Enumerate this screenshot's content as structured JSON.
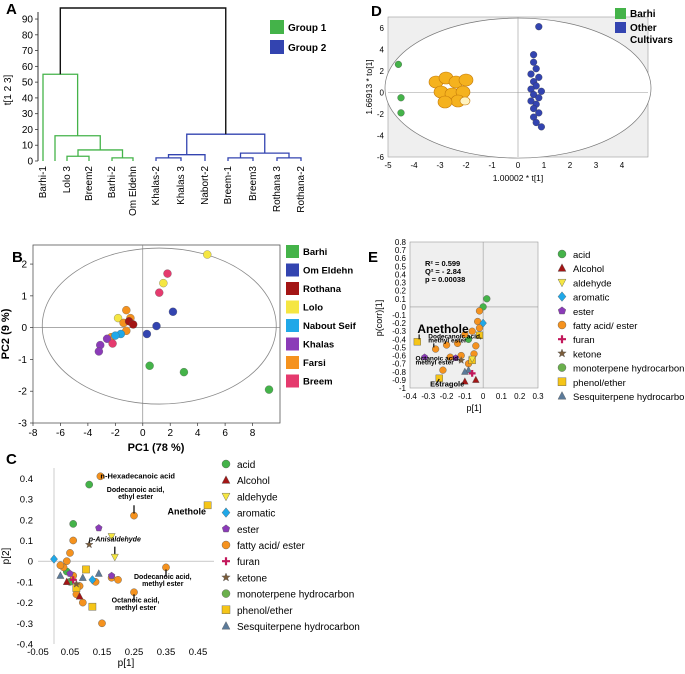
{
  "chart_data": [
    {
      "panel": "A",
      "type": "dendrogram",
      "ylabel": "t[1 2 3]",
      "yticks": [
        0,
        10,
        20,
        30,
        40,
        50,
        60,
        70,
        80,
        90
      ],
      "ylim": [
        0,
        97
      ],
      "leaves": [
        "Barhi-1",
        "Lolo 3",
        "Breem2",
        "Barhi-2",
        "Om Eldehn",
        "Khalas-2",
        "Khalas 3",
        "Nabort-2",
        "Breem-1",
        "Breem3",
        "Rothana 3",
        "Rothana-2"
      ],
      "legend": [
        {
          "label": "Group 1",
          "color": "#44b349"
        },
        {
          "label": "Group 2",
          "color": "#3344b0"
        }
      ],
      "root_height": 97,
      "group1_height": 55,
      "group2_height": 17
    },
    {
      "panel": "B",
      "type": "scatter",
      "xlabel": "PC1 (78 %)",
      "ylabel": "PC2 (9 %)",
      "xlim": [
        -8,
        10
      ],
      "ylim": [
        -3,
        2.6
      ],
      "xticks": [
        -8,
        -6,
        -4,
        -2,
        0,
        2,
        4,
        6,
        8
      ],
      "yticks": [
        -3,
        -2,
        -1,
        0,
        1,
        2
      ],
      "legend": [
        {
          "label": "Barhi",
          "color": "#44b349"
        },
        {
          "label": "Om Eldehn",
          "color": "#3344b0"
        },
        {
          "label": "Rothana",
          "color": "#a31515"
        },
        {
          "label": "Lolo",
          "color": "#f5e642"
        },
        {
          "label": "Nabout Seif",
          "color": "#20a8e8"
        },
        {
          "label": "Khalas",
          "color": "#8b3bb8"
        },
        {
          "label": "Farsi",
          "color": "#f5921e"
        },
        {
          "label": "Breem",
          "color": "#e53a6e"
        }
      ],
      "points": [
        {
          "x": 9.2,
          "y": -1.95,
          "color": "#44b349"
        },
        {
          "x": 3.0,
          "y": -1.4,
          "color": "#44b349"
        },
        {
          "x": 0.5,
          "y": -1.2,
          "color": "#44b349"
        },
        {
          "x": 4.7,
          "y": 2.3,
          "color": "#f5e642"
        },
        {
          "x": 1.5,
          "y": 1.4,
          "color": "#f5e642"
        },
        {
          "x": -1.8,
          "y": 0.3,
          "color": "#f5e642"
        },
        {
          "x": 1.8,
          "y": 1.7,
          "color": "#e53a6e"
        },
        {
          "x": 1.2,
          "y": 1.1,
          "color": "#e53a6e"
        },
        {
          "x": 2.2,
          "y": 0.5,
          "color": "#3344b0"
        },
        {
          "x": 1.0,
          "y": 0.05,
          "color": "#3344b0"
        },
        {
          "x": 0.3,
          "y": -0.2,
          "color": "#3344b0"
        },
        {
          "x": -1.2,
          "y": 0.55,
          "color": "#f5921e"
        },
        {
          "x": -0.9,
          "y": 0.3,
          "color": "#f5921e"
        },
        {
          "x": -1.2,
          "y": -0.1,
          "color": "#f5921e"
        },
        {
          "x": -1.4,
          "y": 0.15,
          "color": "#f5921e"
        },
        {
          "x": -2.3,
          "y": -0.3,
          "color": "#f5921e"
        },
        {
          "x": -1.0,
          "y": 0.2,
          "color": "#a31515"
        },
        {
          "x": -0.7,
          "y": 0.1,
          "color": "#a31515"
        },
        {
          "x": -1.6,
          "y": -0.2,
          "color": "#20a8e8"
        },
        {
          "x": -2.0,
          "y": -0.25,
          "color": "#20a8e8"
        },
        {
          "x": -3.1,
          "y": -0.55,
          "color": "#8b3bb8"
        },
        {
          "x": -3.2,
          "y": -0.75,
          "color": "#8b3bb8"
        },
        {
          "x": -2.6,
          "y": -0.35,
          "color": "#8b3bb8"
        },
        {
          "x": -2.2,
          "y": -0.5,
          "color": "#e53a6e"
        }
      ]
    },
    {
      "panel": "C",
      "type": "loadings-scatter",
      "xlabel": "p[1]",
      "ylabel": "p[2]",
      "xlim": [
        -0.05,
        0.5
      ],
      "ylim": [
        -0.4,
        0.45
      ],
      "xticks": [
        -0.05,
        0.05,
        0.15,
        0.25,
        0.35,
        0.45
      ],
      "yticks": [
        -0.4,
        -0.3,
        -0.2,
        -0.1,
        0,
        0.1,
        0.2,
        0.3,
        0.4
      ],
      "annotations": [
        {
          "text": "n-Hexadecanoic acid",
          "x": 0.145,
          "y": 0.4
        },
        {
          "text": "Dodecanoic acid,",
          "x": 0.255,
          "y": 0.335
        },
        {
          "text": "ethyl ester",
          "x": 0.255,
          "y": 0.3
        },
        {
          "text": "Anethole",
          "x": 0.415,
          "y": 0.225
        },
        {
          "text": "p-Anisaldehyde",
          "x": 0.19,
          "y": 0.095
        },
        {
          "text": "Dodecanoic acid,",
          "x": 0.34,
          "y": -0.085
        },
        {
          "text": "methyl ester",
          "x": 0.34,
          "y": -0.12
        },
        {
          "text": "Octanoic acid,",
          "x": 0.255,
          "y": -0.2
        },
        {
          "text": "methyl ester",
          "x": 0.255,
          "y": -0.235
        }
      ],
      "points": [
        {
          "x": 0.11,
          "y": 0.37,
          "shape": "circle",
          "color": "#44b349"
        },
        {
          "x": 0.06,
          "y": 0.18,
          "shape": "circle",
          "color": "#44b349"
        },
        {
          "x": 0.04,
          "y": -0.05,
          "shape": "circle",
          "color": "#44b349"
        },
        {
          "x": 0.05,
          "y": -0.1,
          "shape": "circle",
          "color": "#44b349"
        },
        {
          "x": 0.145,
          "y": 0.41,
          "shape": "circle",
          "color": "#f5921e"
        },
        {
          "x": 0.25,
          "y": 0.22,
          "shape": "circle",
          "color": "#f5921e"
        },
        {
          "x": 0.35,
          "y": -0.03,
          "shape": "circle",
          "color": "#f5921e"
        },
        {
          "x": 0.25,
          "y": -0.15,
          "shape": "circle",
          "color": "#f5921e"
        },
        {
          "x": 0.15,
          "y": -0.3,
          "shape": "circle",
          "color": "#f5921e"
        },
        {
          "x": 0.06,
          "y": 0.1,
          "shape": "circle",
          "color": "#f5921e"
        },
        {
          "x": 0.05,
          "y": 0.04,
          "shape": "circle",
          "color": "#f5921e"
        },
        {
          "x": 0.04,
          "y": 0.0,
          "shape": "circle",
          "color": "#f5921e"
        },
        {
          "x": 0.03,
          "y": -0.03,
          "shape": "circle",
          "color": "#f5921e"
        },
        {
          "x": 0.06,
          "y": -0.07,
          "shape": "circle",
          "color": "#f5921e"
        },
        {
          "x": 0.08,
          "y": -0.12,
          "shape": "circle",
          "color": "#f5921e"
        },
        {
          "x": 0.09,
          "y": -0.2,
          "shape": "circle",
          "color": "#f5921e"
        },
        {
          "x": 0.13,
          "y": -0.1,
          "shape": "circle",
          "color": "#f5921e"
        },
        {
          "x": 0.18,
          "y": -0.08,
          "shape": "circle",
          "color": "#f5921e"
        },
        {
          "x": 0.2,
          "y": -0.09,
          "shape": "circle",
          "color": "#f5921e"
        },
        {
          "x": 0.07,
          "y": -0.16,
          "shape": "circle",
          "color": "#f5921e"
        },
        {
          "x": 0.02,
          "y": -0.02,
          "shape": "circle",
          "color": "#f5921e"
        },
        {
          "x": 0.48,
          "y": 0.27,
          "shape": "square",
          "color": "#f5c518"
        },
        {
          "x": 0.12,
          "y": -0.22,
          "shape": "square",
          "color": "#f5c518"
        },
        {
          "x": 0.1,
          "y": -0.04,
          "shape": "square",
          "color": "#f5c518"
        },
        {
          "x": 0.07,
          "y": -0.13,
          "shape": "square",
          "color": "#f5c518"
        },
        {
          "x": 0.18,
          "y": 0.12,
          "shape": "triangle-down",
          "color": "#f5e642"
        },
        {
          "x": 0.19,
          "y": 0.02,
          "shape": "triangle-down",
          "color": "#f5e642"
        },
        {
          "x": 0.12,
          "y": -0.09,
          "shape": "diamond",
          "color": "#20a8e8"
        },
        {
          "x": 0.0,
          "y": 0.01,
          "shape": "diamond",
          "color": "#20a8e8"
        },
        {
          "x": 0.14,
          "y": 0.16,
          "shape": "pentagon",
          "color": "#8b3bb8"
        },
        {
          "x": 0.18,
          "y": -0.07,
          "shape": "pentagon",
          "color": "#8b3bb8"
        },
        {
          "x": 0.05,
          "y": -0.06,
          "shape": "pentagon",
          "color": "#8b3bb8"
        },
        {
          "x": 0.08,
          "y": -0.17,
          "shape": "triangle",
          "color": "#a31515"
        },
        {
          "x": 0.04,
          "y": -0.1,
          "shape": "triangle",
          "color": "#a31515"
        },
        {
          "x": 0.07,
          "y": -0.11,
          "shape": "star",
          "color": "#7a5c3a"
        },
        {
          "x": 0.11,
          "y": 0.08,
          "shape": "star",
          "color": "#7a5c3a"
        },
        {
          "x": 0.09,
          "y": -0.08,
          "shape": "triangle",
          "color": "#5b7a99"
        },
        {
          "x": 0.02,
          "y": -0.07,
          "shape": "triangle",
          "color": "#5b7a99"
        },
        {
          "x": 0.14,
          "y": -0.06,
          "shape": "triangle",
          "color": "#5b7a99"
        },
        {
          "x": 0.06,
          "y": -0.09,
          "shape": "plus",
          "color": "#c2185b"
        }
      ]
    },
    {
      "panel": "D",
      "type": "scatter",
      "xlabel": "1.00002 * t[1]",
      "ylabel": "1.66913 * to[1]",
      "xlim": [
        -5,
        5
      ],
      "ylim": [
        -6,
        7
      ],
      "xticks": [
        -5,
        -4,
        -3,
        -2,
        -1,
        0,
        1,
        2,
        3,
        4
      ],
      "yticks": [
        -6,
        -4,
        -2,
        0,
        2,
        4,
        6
      ],
      "legend": [
        {
          "label": "Barhi",
          "color": "#44b349"
        },
        {
          "label": "Other",
          "color": "#3344b0"
        },
        {
          "label": "Cultivars",
          "color": "#3344b0"
        }
      ],
      "points": [
        {
          "x": -4.6,
          "y": 2.6,
          "color": "#44b349"
        },
        {
          "x": -4.5,
          "y": -0.5,
          "color": "#44b349"
        },
        {
          "x": -4.5,
          "y": -1.9,
          "color": "#44b349"
        },
        {
          "x": 0.8,
          "y": 6.1,
          "color": "#3344b0"
        },
        {
          "x": 0.6,
          "y": 3.5,
          "color": "#3344b0"
        },
        {
          "x": 0.6,
          "y": 2.8,
          "color": "#3344b0"
        },
        {
          "x": 0.7,
          "y": 2.2,
          "color": "#3344b0"
        },
        {
          "x": 0.5,
          "y": 1.7,
          "color": "#3344b0"
        },
        {
          "x": 0.8,
          "y": 1.4,
          "color": "#3344b0"
        },
        {
          "x": 0.6,
          "y": 1.0,
          "color": "#3344b0"
        },
        {
          "x": 0.7,
          "y": 0.6,
          "color": "#3344b0"
        },
        {
          "x": 0.5,
          "y": 0.3,
          "color": "#3344b0"
        },
        {
          "x": 0.9,
          "y": 0.1,
          "color": "#3344b0"
        },
        {
          "x": 0.6,
          "y": -0.2,
          "color": "#3344b0"
        },
        {
          "x": 0.8,
          "y": -0.5,
          "color": "#3344b0"
        },
        {
          "x": 0.5,
          "y": -0.8,
          "color": "#3344b0"
        },
        {
          "x": 0.7,
          "y": -1.1,
          "color": "#3344b0"
        },
        {
          "x": 0.6,
          "y": -1.5,
          "color": "#3344b0"
        },
        {
          "x": 0.8,
          "y": -1.9,
          "color": "#3344b0"
        },
        {
          "x": 0.6,
          "y": -2.3,
          "color": "#3344b0"
        },
        {
          "x": 0.7,
          "y": -2.8,
          "color": "#3344b0"
        },
        {
          "x": 0.9,
          "y": -3.2,
          "color": "#3344b0"
        }
      ]
    },
    {
      "panel": "E",
      "type": "s-plot",
      "xlabel": "p[1]",
      "ylabel": "p(corr)[1]",
      "xlim": [
        -0.4,
        0.3
      ],
      "ylim": [
        -1.0,
        0.8
      ],
      "xticks": [
        -0.4,
        -0.3,
        -0.2,
        -0.1,
        0,
        0.1,
        0.2,
        0.3
      ],
      "yticks": [
        -1,
        -0.9,
        -0.8,
        -0.7,
        -0.6,
        -0.5,
        -0.4,
        -0.3,
        -0.2,
        -0.1,
        0,
        0.1,
        0.2,
        0.3,
        0.4,
        0.5,
        0.6,
        0.7,
        0.8
      ],
      "stats": [
        "R² = 0.599",
        "Q² = - 2.84",
        "p = 0.00038"
      ],
      "annotations": [
        {
          "text": "Anethole",
          "x": -0.36,
          "y": -0.32
        },
        {
          "text": "Dodecanoic acid,",
          "x": -0.3,
          "y": -0.39
        },
        {
          "text": "methyl ester",
          "x": -0.3,
          "y": -0.44
        },
        {
          "text": "Octanoic acid,",
          "x": -0.37,
          "y": -0.66
        },
        {
          "text": "methyl ester",
          "x": -0.37,
          "y": -0.71
        },
        {
          "text": "Estragole",
          "x": -0.29,
          "y": -0.98
        }
      ],
      "points": [
        {
          "x": 0.02,
          "y": 0.1,
          "shape": "circle",
          "color": "#44b349"
        },
        {
          "x": 0.0,
          "y": 0.0,
          "shape": "circle",
          "color": "#44b349"
        },
        {
          "x": -0.08,
          "y": -0.4,
          "shape": "circle",
          "color": "#44b349"
        },
        {
          "x": -0.02,
          "y": -0.05,
          "shape": "circle",
          "color": "#f5921e"
        },
        {
          "x": -0.03,
          "y": -0.18,
          "shape": "circle",
          "color": "#f5921e"
        },
        {
          "x": -0.02,
          "y": -0.26,
          "shape": "circle",
          "color": "#f5921e"
        },
        {
          "x": -0.06,
          "y": -0.3,
          "shape": "circle",
          "color": "#f5921e"
        },
        {
          "x": -0.1,
          "y": -0.34,
          "shape": "circle",
          "color": "#f5921e"
        },
        {
          "x": -0.14,
          "y": -0.45,
          "shape": "circle",
          "color": "#f5921e"
        },
        {
          "x": -0.2,
          "y": -0.47,
          "shape": "circle",
          "color": "#f5921e"
        },
        {
          "x": -0.26,
          "y": -0.52,
          "shape": "circle",
          "color": "#f5921e"
        },
        {
          "x": -0.18,
          "y": -0.62,
          "shape": "circle",
          "color": "#f5921e"
        },
        {
          "x": -0.12,
          "y": -0.6,
          "shape": "circle",
          "color": "#f5921e"
        },
        {
          "x": -0.05,
          "y": -0.58,
          "shape": "circle",
          "color": "#f5921e"
        },
        {
          "x": -0.08,
          "y": -0.7,
          "shape": "circle",
          "color": "#f5921e"
        },
        {
          "x": -0.22,
          "y": -0.78,
          "shape": "circle",
          "color": "#f5921e"
        },
        {
          "x": -0.04,
          "y": -0.48,
          "shape": "circle",
          "color": "#f5921e"
        },
        {
          "x": -0.36,
          "y": -0.43,
          "shape": "square",
          "color": "#f5c518"
        },
        {
          "x": -0.02,
          "y": -0.35,
          "shape": "square",
          "color": "#f5c518"
        },
        {
          "x": -0.24,
          "y": -0.88,
          "shape": "square",
          "color": "#f5c518"
        },
        {
          "x": -0.06,
          "y": -0.66,
          "shape": "square",
          "color": "#f5c518"
        },
        {
          "x": -0.06,
          "y": -0.64,
          "shape": "triangle-down",
          "color": "#f5e642"
        },
        {
          "x": 0.0,
          "y": -0.2,
          "shape": "diamond",
          "color": "#20a8e8"
        },
        {
          "x": -0.15,
          "y": -0.63,
          "shape": "pentagon",
          "color": "#8b3bb8"
        },
        {
          "x": -0.32,
          "y": -0.62,
          "shape": "pentagon",
          "color": "#8b3bb8"
        },
        {
          "x": -0.1,
          "y": -0.92,
          "shape": "triangle",
          "color": "#a31515"
        },
        {
          "x": -0.04,
          "y": -0.9,
          "shape": "triangle",
          "color": "#a31515"
        },
        {
          "x": -0.12,
          "y": -0.66,
          "shape": "star",
          "color": "#7a5c3a"
        },
        {
          "x": -0.08,
          "y": -0.78,
          "shape": "triangle",
          "color": "#5b7a99"
        },
        {
          "x": -0.1,
          "y": -0.8,
          "shape": "triangle",
          "color": "#5b7a99"
        },
        {
          "x": -0.06,
          "y": -0.82,
          "shape": "plus",
          "color": "#c2185b"
        }
      ]
    }
  ],
  "compound_legend": [
    {
      "label": "acid",
      "shape": "circle",
      "color": "#44b349"
    },
    {
      "label": "Alcohol",
      "shape": "triangle",
      "color": "#a31515"
    },
    {
      "label": "aldehyde",
      "shape": "triangle-down",
      "color": "#f5e642"
    },
    {
      "label": "aromatic",
      "shape": "diamond",
      "color": "#20a8e8"
    },
    {
      "label": "ester",
      "shape": "pentagon",
      "color": "#8b3bb8"
    },
    {
      "label": "fatty acid/ ester",
      "shape": "circle",
      "color": "#f5921e"
    },
    {
      "label": "furan",
      "shape": "plus",
      "color": "#c2185b"
    },
    {
      "label": "ketone",
      "shape": "star",
      "color": "#7a5c3a"
    },
    {
      "label": "monoterpene hydrocarbon",
      "shape": "circle",
      "color": "#6ab04c"
    },
    {
      "label": "phenol/ether",
      "shape": "square",
      "color": "#f5c518"
    },
    {
      "label": "Sesquiterpene hydrocarbon",
      "shape": "triangle",
      "color": "#5b7a99"
    }
  ]
}
